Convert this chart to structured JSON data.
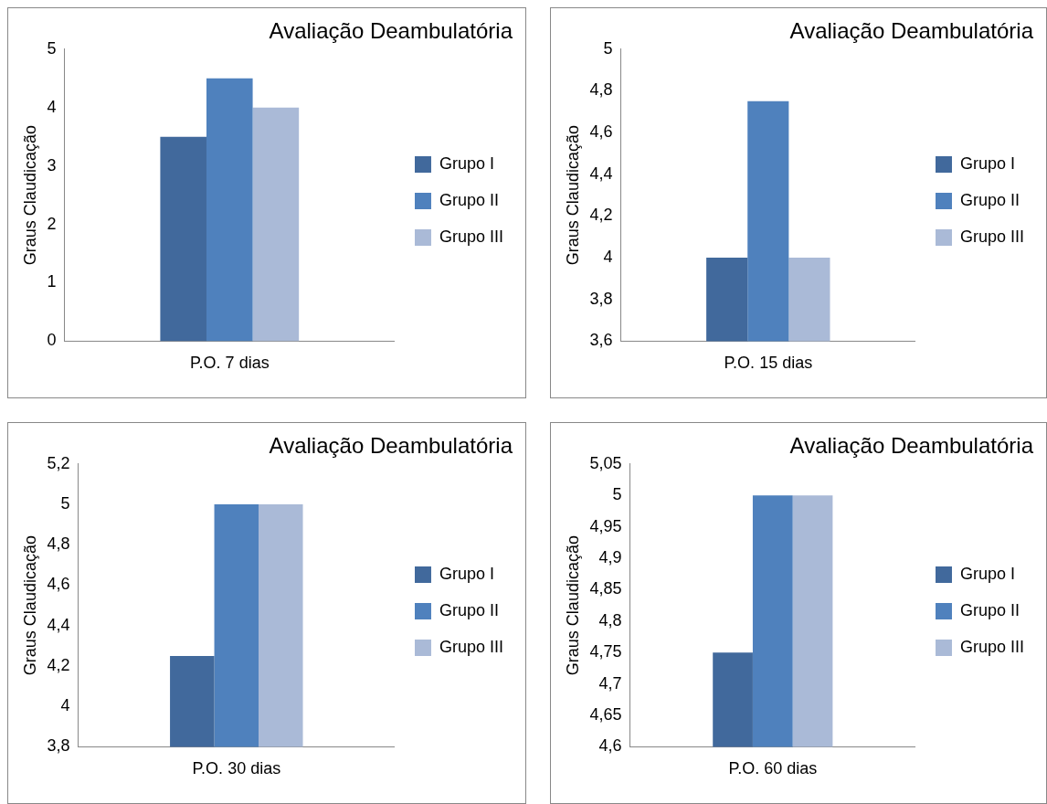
{
  "chart_data": [
    {
      "type": "bar",
      "title": "Avaliação Deambulatória",
      "ylabel": "Graus Claudicação",
      "categories": [
        "P.O. 7 dias"
      ],
      "legend": "right",
      "grid": false,
      "ylim": [
        0,
        5
      ],
      "yticks": [
        0,
        1,
        2,
        3,
        4,
        5
      ],
      "series": [
        {
          "name": "Grupo I",
          "color": "#41699c",
          "values": [
            3.5
          ]
        },
        {
          "name": "Grupo II",
          "color": "#4f81bd",
          "values": [
            4.5
          ]
        },
        {
          "name": "Grupo III",
          "color": "#aabad7",
          "values": [
            4
          ]
        }
      ]
    },
    {
      "type": "bar",
      "title": "Avaliação Deambulatória",
      "ylabel": "Graus Claudicação",
      "categories": [
        "P.O. 15 dias"
      ],
      "legend": "right",
      "grid": false,
      "ylim": [
        3.6,
        5
      ],
      "yticks": [
        {
          "value": 3.6,
          "label": "3,6"
        },
        {
          "value": 3.8,
          "label": "3,8"
        },
        4,
        {
          "value": 4.2,
          "label": "4,2"
        },
        {
          "value": 4.4,
          "label": "4,4"
        },
        {
          "value": 4.6,
          "label": "4,6"
        },
        {
          "value": 4.8,
          "label": "4,8"
        },
        5
      ],
      "series": [
        {
          "name": "Grupo I",
          "color": "#41699c",
          "values": [
            4
          ]
        },
        {
          "name": "Grupo II",
          "color": "#4f81bd",
          "values": [
            4.75
          ]
        },
        {
          "name": "Grupo III",
          "color": "#aabad7",
          "values": [
            4
          ]
        }
      ]
    },
    {
      "type": "bar",
      "title": "Avaliação Deambulatória",
      "ylabel": "Graus Claudicação",
      "categories": [
        "P.O. 30 dias"
      ],
      "legend": "right",
      "grid": false,
      "ylim": [
        3.8,
        5.2
      ],
      "yticks": [
        {
          "value": 3.8,
          "label": "3,8"
        },
        4,
        {
          "value": 4.2,
          "label": "4,2"
        },
        {
          "value": 4.4,
          "label": "4,4"
        },
        {
          "value": 4.6,
          "label": "4,6"
        },
        {
          "value": 4.8,
          "label": "4,8"
        },
        5,
        {
          "value": 5.2,
          "label": "5,2"
        }
      ],
      "series": [
        {
          "name": "Grupo I",
          "color": "#41699c",
          "values": [
            4.25
          ]
        },
        {
          "name": "Grupo II",
          "color": "#4f81bd",
          "values": [
            5
          ]
        },
        {
          "name": "Grupo III",
          "color": "#aabad7",
          "values": [
            5
          ]
        }
      ]
    },
    {
      "type": "bar",
      "title": "Avaliação Deambulatória",
      "ylabel": "Graus Claudicação",
      "categories": [
        "P.O. 60 dias"
      ],
      "legend": "right",
      "grid": false,
      "ylim": [
        4.6,
        5.05
      ],
      "yticks": [
        {
          "value": 4.6,
          "label": "4,6"
        },
        {
          "value": 4.65,
          "label": "4,65"
        },
        {
          "value": 4.7,
          "label": "4,7"
        },
        {
          "value": 4.75,
          "label": "4,75"
        },
        {
          "value": 4.8,
          "label": "4,8"
        },
        {
          "value": 4.85,
          "label": "4,85"
        },
        {
          "value": 4.9,
          "label": "4,9"
        },
        {
          "value": 4.95,
          "label": "4,95"
        },
        5,
        {
          "value": 5.05,
          "label": "5,05"
        }
      ],
      "series": [
        {
          "name": "Grupo I",
          "color": "#41699c",
          "values": [
            4.75
          ]
        },
        {
          "name": "Grupo II",
          "color": "#4f81bd",
          "values": [
            5
          ]
        },
        {
          "name": "Grupo III",
          "color": "#aabad7",
          "values": [
            5
          ]
        }
      ]
    }
  ]
}
